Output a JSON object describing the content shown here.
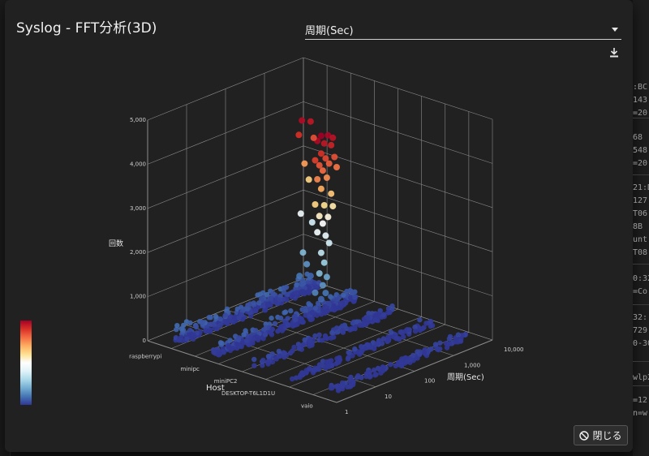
{
  "dialog": {
    "title": "Syslog - FFT分析(3D)",
    "select": {
      "value": "周期(Sec)"
    },
    "download_icon": "download-icon",
    "close_label": "閉じる",
    "close_icon": "prohibit-icon"
  },
  "colors": {
    "dialog_bg": "#212121",
    "grid": "#8a8a8a",
    "low": "#4a5fc1",
    "high": "#c8102e"
  },
  "chart_data": {
    "type": "scatter",
    "title": "",
    "zlabel": "回数",
    "xlabel": "Host",
    "ylabel": "周期(Sec)",
    "zlim": [
      0,
      5000
    ],
    "z_ticks": [
      "0",
      "1,000",
      "2,000",
      "3,000",
      "4,000",
      "5,000"
    ],
    "y_scale": "log",
    "ylim": [
      1,
      10000
    ],
    "y_ticks": [
      "1",
      "10",
      "100",
      "1,000",
      "10,000"
    ],
    "hosts": [
      "raspberrypi",
      "minipc",
      "miniPC2",
      "DESKTOP-T6L1D1U",
      "vaio"
    ],
    "colorscale": [
      "#313695",
      "#4575b4",
      "#74add1",
      "#abd9e9",
      "#e0f3f8",
      "#ffffff",
      "#fee090",
      "#fdae61",
      "#f46d43",
      "#d73027",
      "#a50026"
    ],
    "series": [
      {
        "host": "minipc",
        "points": [
          [
            1000,
            4000
          ],
          [
            1500,
            3950
          ],
          [
            800,
            3920
          ],
          [
            2000,
            3850
          ],
          [
            1200,
            3800
          ],
          [
            1800,
            3700
          ],
          [
            1000,
            3600
          ],
          [
            700,
            3500
          ],
          [
            1300,
            3450
          ],
          [
            2200,
            3400
          ],
          [
            900,
            3350
          ],
          [
            1600,
            3300
          ],
          [
            1100,
            3200
          ],
          [
            2500,
            3150
          ],
          [
            800,
            3050
          ],
          [
            1400,
            3000
          ],
          [
            1000,
            2800
          ],
          [
            1800,
            2600
          ],
          [
            700,
            2500
          ],
          [
            1200,
            2400
          ],
          [
            2000,
            2300
          ],
          [
            900,
            2200
          ],
          [
            1500,
            2100
          ],
          [
            1100,
            2000
          ],
          [
            800,
            1850
          ],
          [
            1300,
            1700
          ],
          [
            1600,
            1500
          ],
          [
            1000,
            1350
          ],
          [
            1200,
            1100
          ],
          [
            900,
            900
          ],
          [
            1400,
            750
          ],
          [
            1100,
            600
          ],
          [
            700,
            500
          ],
          [
            1300,
            400
          ],
          [
            1000,
            300
          ]
        ]
      },
      {
        "host": "raspberrypi",
        "points": [
          [
            3000,
            3900
          ],
          [
            5000,
            3800
          ],
          [
            2500,
            3600
          ],
          [
            6000,
            3400
          ],
          [
            3500,
            2900
          ],
          [
            4500,
            2500
          ],
          [
            2800,
            1800
          ],
          [
            5500,
            1500
          ],
          [
            3200,
            900
          ],
          [
            4000,
            600
          ],
          [
            2600,
            400
          ],
          [
            5000,
            300
          ],
          [
            3000,
            200
          ]
        ]
      }
    ],
    "bulk": [
      {
        "host": "raspberrypi",
        "y_range": [
          2,
          8000
        ],
        "z_max": 350,
        "count": 260
      },
      {
        "host": "minipc",
        "y_range": [
          2,
          8000
        ],
        "z_max": 300,
        "count": 260
      },
      {
        "host": "miniPC2",
        "y_range": [
          2,
          8000
        ],
        "z_max": 150,
        "count": 120
      },
      {
        "host": "DESKTOP-T6L1D1U",
        "y_range": [
          2,
          8000
        ],
        "z_max": 120,
        "count": 110
      },
      {
        "host": "vaio",
        "y_range": [
          2,
          8000
        ],
        "z_max": 90,
        "count": 110
      }
    ]
  }
}
